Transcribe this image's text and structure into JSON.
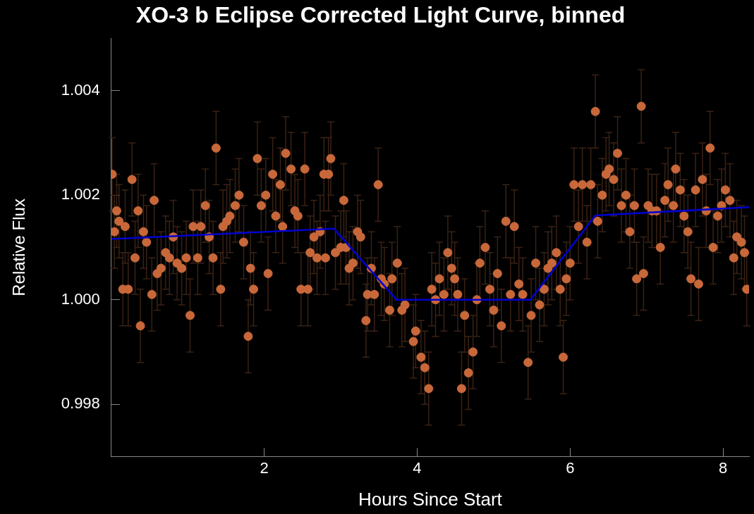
{
  "chart_data": {
    "type": "scatter",
    "title": "XO-3 b Eclipse Corrected Light Curve, binned",
    "xlabel": "Hours Since Start",
    "ylabel": "Relative Flux",
    "xlim": [
      0,
      8.34
    ],
    "ylim": [
      0.997,
      1.005
    ],
    "xticks": [
      2,
      4,
      6,
      8
    ],
    "yticks": [
      0.998,
      {
        "value": 1,
        "label": "1.000"
      },
      1.002,
      1.004
    ],
    "grid": false,
    "legend": false,
    "series": [
      {
        "type": "scatter",
        "color": "#c8683a",
        "marker": "circle",
        "x": [
          0.01,
          0.04,
          0.07,
          0.1,
          0.15,
          0.18,
          0.22,
          0.27,
          0.31,
          0.35,
          0.38,
          0.42,
          0.46,
          0.53,
          0.56,
          0.6,
          0.65,
          0.71,
          0.76,
          0.81,
          0.86,
          0.92,
          0.98,
          1.03,
          1.07,
          1.13,
          1.17,
          1.23,
          1.28,
          1.33,
          1.37,
          1.43,
          1.46,
          1.51,
          1.55,
          1.62,
          1.67,
          1.73,
          1.79,
          1.82,
          1.86,
          1.91,
          1.96,
          2.02,
          2.05,
          2.11,
          2.15,
          2.21,
          2.24,
          2.28,
          2.35,
          2.4,
          2.44,
          2.48,
          2.53,
          2.57,
          2.6,
          2.65,
          2.69,
          2.73,
          2.78,
          2.8,
          2.84,
          2.87,
          2.93,
          3.0,
          3.04,
          3.07,
          3.11,
          3.16,
          3.22,
          3.26,
          3.33,
          3.35,
          3.4,
          3.44,
          3.49,
          3.53,
          3.57,
          3.64,
          3.67,
          3.74,
          3.8,
          3.84,
          3.95,
          3.98,
          4.05,
          4.1,
          4.15,
          4.19,
          4.24,
          4.29,
          4.35,
          4.4,
          4.45,
          4.49,
          4.53,
          4.58,
          4.62,
          4.67,
          4.73,
          4.78,
          4.82,
          4.89,
          4.95,
          5.0,
          5.05,
          5.1,
          5.16,
          5.22,
          5.27,
          5.33,
          5.38,
          5.45,
          5.49,
          5.55,
          5.6,
          5.66,
          5.71,
          5.76,
          5.82,
          5.87,
          5.91,
          5.95,
          6.0,
          6.05,
          6.11,
          6.16,
          6.22,
          6.27,
          6.33,
          6.36,
          6.42,
          6.47,
          6.51,
          6.57,
          6.62,
          6.67,
          6.73,
          6.78,
          6.84,
          6.87,
          6.93,
          6.96,
          7.02,
          7.07,
          7.13,
          7.18,
          7.24,
          7.28,
          7.35,
          7.38,
          7.44,
          7.49,
          7.54,
          7.58,
          7.64,
          7.68,
          7.73,
          7.78,
          7.83,
          7.87,
          7.93,
          7.98,
          8.03,
          8.09,
          8.14,
          8.18,
          8.24,
          8.28,
          8.31
        ],
        "values": [
          1.0024,
          1.0013,
          1.0017,
          1.0015,
          1.0002,
          1.0014,
          1.0002,
          1.0023,
          1.0008,
          1.0017,
          0.9995,
          1.0013,
          1.0011,
          1.0001,
          1.0019,
          1.0005,
          1.0006,
          1.0009,
          1.0008,
          1.0012,
          1.0007,
          1.0006,
          1.0008,
          0.9997,
          1.0014,
          1.0008,
          1.0014,
          1.0018,
          1.0012,
          1.0008,
          1.0029,
          1.0002,
          1.0014,
          1.0015,
          1.0016,
          1.0018,
          1.002,
          1.0011,
          0.9993,
          1.0006,
          1.0002,
          1.0027,
          1.0018,
          1.002,
          1.0005,
          1.0024,
          1.0016,
          1.0022,
          1.0014,
          1.0028,
          1.0025,
          1.0017,
          1.0016,
          1.0002,
          1.0025,
          1.0002,
          1.0009,
          1.0012,
          1.0008,
          1.0013,
          1.0024,
          1.0008,
          1.0024,
          1.0027,
          1.0009,
          1.001,
          1.0019,
          1.001,
          1.0006,
          1.0007,
          1.0013,
          1.0012,
          0.9996,
          1.0001,
          1.0006,
          1.0001,
          1.0022,
          1.0004,
          1.0003,
          0.9998,
          1.0004,
          1.0007,
          0.9998,
          0.9999,
          0.9992,
          0.9994,
          0.9989,
          0.9987,
          0.9983,
          1.0002,
          1.0,
          1.0004,
          1.0001,
          1.0009,
          1.0006,
          1.0004,
          1.0001,
          0.9983,
          0.9997,
          0.9986,
          0.999,
          1.0,
          1.0007,
          1.001,
          1.0002,
          0.9998,
          1.0005,
          0.9995,
          1.0015,
          1.0001,
          1.0014,
          1.0003,
          1.0001,
          0.9988,
          0.9997,
          1.0007,
          0.9999,
          1.0002,
          1.0006,
          1.0007,
          1.0009,
          1.0002,
          0.9989,
          1.0004,
          1.0007,
          1.0022,
          1.0014,
          1.0022,
          1.0011,
          1.0022,
          1.0036,
          1.0015,
          1.002,
          1.0024,
          1.0025,
          1.0023,
          1.0028,
          1.0018,
          1.002,
          1.0013,
          1.0018,
          1.0004,
          1.0037,
          1.0005,
          1.0018,
          1.0017,
          1.0017,
          1.001,
          1.0019,
          1.0022,
          1.0018,
          1.0025,
          1.0021,
          1.0016,
          1.0013,
          1.0004,
          1.0021,
          1.0003,
          1.0023,
          1.0017,
          1.0029,
          1.001,
          1.0016,
          1.0018,
          1.0021,
          1.0019,
          1.0008,
          1.0012,
          1.0011,
          1.0009,
          1.0002
        ],
        "errors": [
          0.0007,
          0.0007,
          0.0007,
          0.0007,
          0.0007,
          0.0007,
          0.0007,
          0.0007,
          0.0007,
          0.0007,
          0.0007,
          0.0007,
          0.0007,
          0.0007,
          0.0007,
          0.0007,
          0.0007,
          0.0007,
          0.0007,
          0.0007,
          0.0007,
          0.0007,
          0.0007,
          0.0007,
          0.0007,
          0.0007,
          0.0007,
          0.0007,
          0.0007,
          0.0007,
          0.0007,
          0.0007,
          0.0007,
          0.0007,
          0.0007,
          0.0007,
          0.0007,
          0.0007,
          0.0007,
          0.0007,
          0.0007,
          0.0007,
          0.0007,
          0.0007,
          0.0007,
          0.0007,
          0.0007,
          0.0007,
          0.0007,
          0.0007,
          0.0007,
          0.0007,
          0.0007,
          0.0007,
          0.0007,
          0.0007,
          0.0007,
          0.0007,
          0.0007,
          0.0007,
          0.0007,
          0.0007,
          0.0007,
          0.0007,
          0.0007,
          0.0007,
          0.0007,
          0.0007,
          0.0007,
          0.0007,
          0.0007,
          0.0007,
          0.0007,
          0.0007,
          0.0007,
          0.0007,
          0.0007,
          0.0007,
          0.0007,
          0.0007,
          0.0007,
          0.0007,
          0.0007,
          0.0007,
          0.0007,
          0.0007,
          0.0007,
          0.0007,
          0.0007,
          0.0007,
          0.0007,
          0.0007,
          0.0007,
          0.0007,
          0.0007,
          0.0007,
          0.0007,
          0.0007,
          0.0007,
          0.0007,
          0.0007,
          0.0007,
          0.0007,
          0.0007,
          0.0007,
          0.0007,
          0.0007,
          0.0007,
          0.0007,
          0.0007,
          0.0007,
          0.0007,
          0.0007,
          0.0007,
          0.0007,
          0.0007,
          0.0007,
          0.0007,
          0.0007,
          0.0007,
          0.0007,
          0.0007,
          0.0007,
          0.0007,
          0.0007,
          0.0007,
          0.0007,
          0.0007,
          0.0007,
          0.0007,
          0.0007,
          0.0007,
          0.0007,
          0.0007,
          0.0007,
          0.0007,
          0.0007,
          0.0007,
          0.0007,
          0.0007,
          0.0007,
          0.0007,
          0.0007,
          0.0007,
          0.0007,
          0.0007,
          0.0007,
          0.0007,
          0.0007,
          0.0007,
          0.0007,
          0.0007,
          0.0007,
          0.0007,
          0.0007,
          0.0007,
          0.0007,
          0.0007,
          0.0007,
          0.0007,
          0.0007,
          0.0007,
          0.0007,
          0.0007,
          0.0007,
          0.0007,
          0.0007,
          0.0007,
          0.0007,
          0.0007,
          0.0007
        ]
      },
      {
        "type": "line",
        "color": "#0000d0",
        "marker": "none",
        "line_style": "solid",
        "x": [
          0,
          2.91,
          3.73,
          5.48,
          6.33,
          8.34
        ],
        "values": [
          1.00116,
          1.00136,
          1.0,
          1.0,
          1.00161,
          1.00177
        ]
      }
    ]
  }
}
